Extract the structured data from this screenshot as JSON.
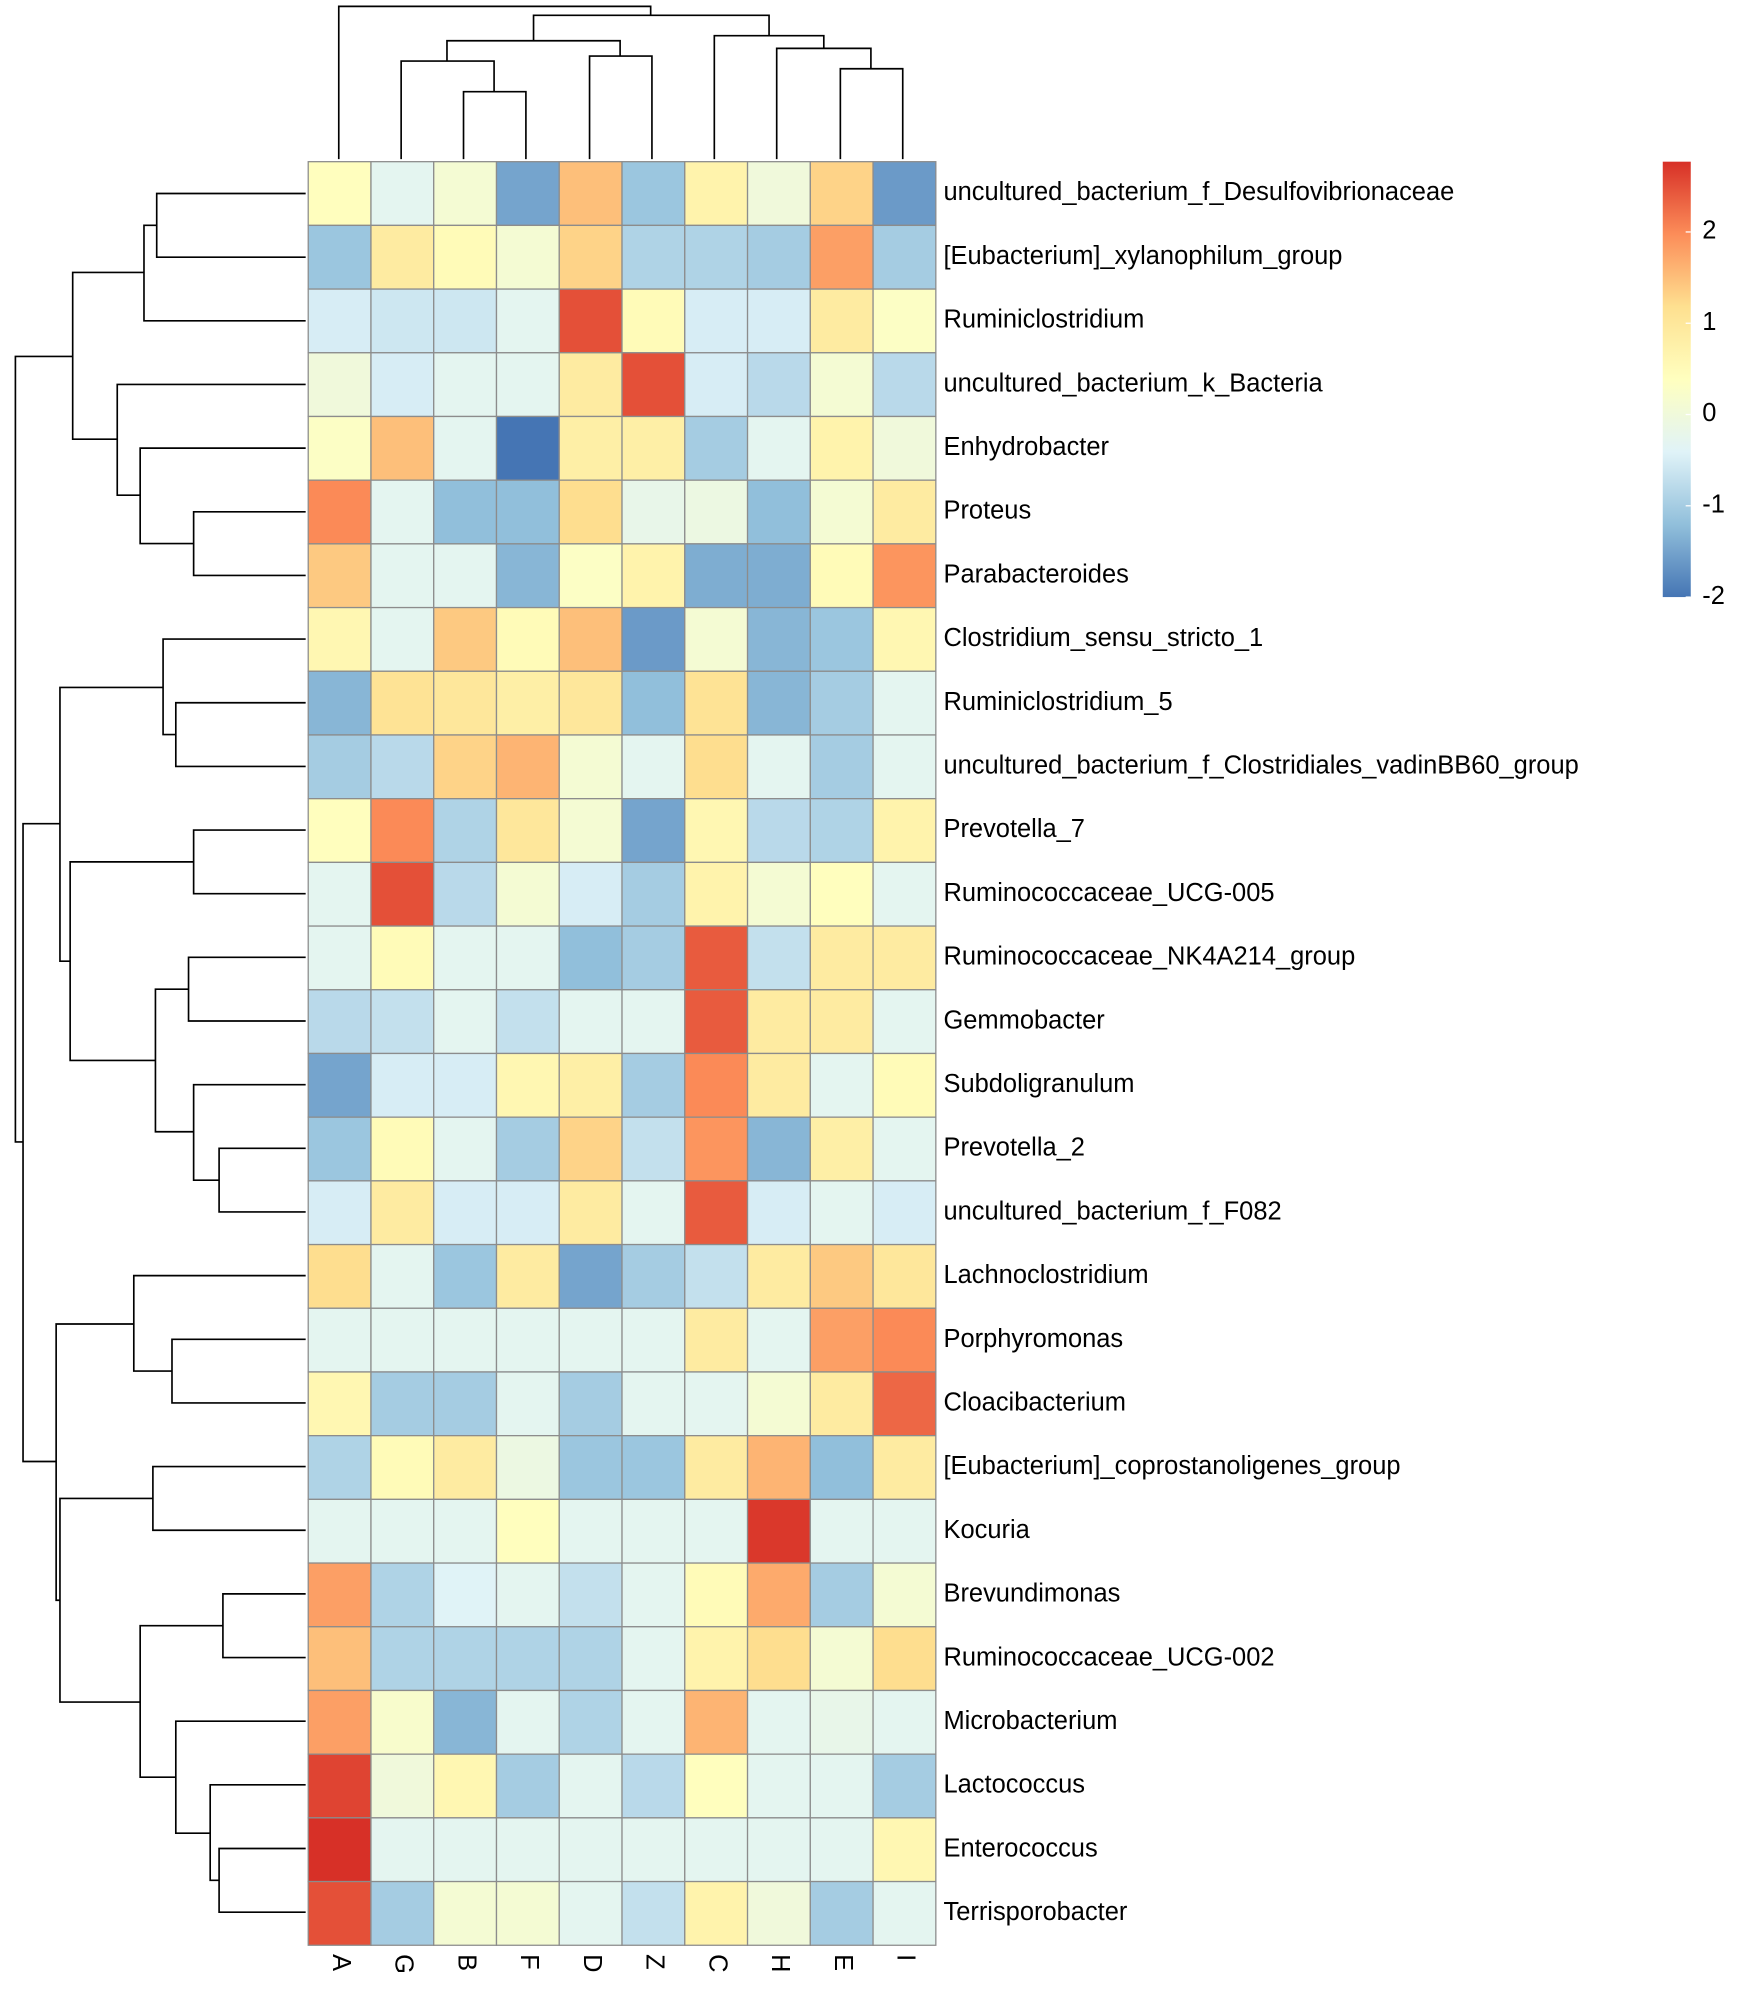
{
  "chart_data": {
    "type": "heatmap",
    "x": [
      "A",
      "G",
      "B",
      "F",
      "D",
      "Z",
      "C",
      "H",
      "E",
      "I"
    ],
    "y": [
      "uncultured_bacterium_f_Desulfovibrionaceae",
      "[Eubacterium]_xylanophilum_group",
      "Ruminiclostridium",
      "uncultured_bacterium_k_Bacteria",
      "Enhydrobacter",
      "Proteus",
      "Parabacteroides",
      "Clostridium_sensu_stricto_1",
      "Ruminiclostridium_5",
      "uncultured_bacterium_f_Clostridiales_vadinBB60_group",
      "Prevotella_7",
      "Ruminococcaceae_UCG-005",
      "Ruminococcaceae_NK4A214_group",
      "Gemmobacter",
      "Subdoligranulum",
      "Prevotella_2",
      "uncultured_bacterium_f_F082",
      "Lachnoclostridium",
      "Porphyromonas",
      "Cloacibacterium",
      "[Eubacterium]_coprostanoligenes_group",
      "Kocuria",
      "Brevundimonas",
      "Ruminococcaceae_UCG-002",
      "Microbacterium",
      "Lactococcus",
      "Enterococcus",
      "Terrisporobacter"
    ],
    "values": [
      [
        0.4,
        -0.3,
        0.1,
        -1.5,
        1.5,
        -1.1,
        0.7,
        0.0,
        1.3,
        -1.6
      ],
      [
        -1.1,
        0.9,
        0.5,
        0.1,
        1.3,
        -0.9,
        -0.9,
        -1.0,
        1.8,
        -1.0
      ],
      [
        -0.5,
        -0.6,
        -0.6,
        -0.3,
        2.5,
        0.5,
        -0.5,
        -0.5,
        0.9,
        0.3
      ],
      [
        0.0,
        -0.5,
        -0.3,
        -0.3,
        0.9,
        2.5,
        -0.5,
        -0.8,
        0.1,
        -0.8
      ],
      [
        0.3,
        1.5,
        -0.3,
        -2.0,
        0.8,
        0.8,
        -1.0,
        -0.3,
        0.7,
        0.0
      ],
      [
        2.0,
        -0.3,
        -1.2,
        -1.2,
        1.2,
        -0.2,
        -0.1,
        -1.2,
        0.1,
        0.9
      ],
      [
        1.4,
        -0.3,
        -0.3,
        -1.3,
        0.3,
        0.7,
        -1.4,
        -1.4,
        0.5,
        1.9
      ],
      [
        0.6,
        -0.3,
        1.4,
        0.5,
        1.5,
        -1.6,
        0.1,
        -1.3,
        -1.1,
        0.6
      ],
      [
        -1.3,
        1.1,
        1.0,
        0.8,
        1.0,
        -1.2,
        1.1,
        -1.3,
        -1.0,
        -0.3
      ],
      [
        -1.0,
        -0.8,
        1.3,
        1.6,
        0.1,
        -0.3,
        1.2,
        -0.3,
        -1.0,
        -0.3
      ],
      [
        0.4,
        2.0,
        -0.9,
        1.0,
        0.1,
        -1.5,
        0.6,
        -0.8,
        -0.9,
        0.7
      ],
      [
        -0.3,
        2.5,
        -0.8,
        0.1,
        -0.5,
        -1.0,
        0.7,
        0.1,
        0.4,
        -0.3
      ],
      [
        -0.3,
        0.5,
        -0.3,
        -0.3,
        -1.2,
        -1.0,
        2.4,
        -0.7,
        0.9,
        0.9
      ],
      [
        -0.8,
        -0.7,
        -0.3,
        -0.7,
        -0.3,
        -0.3,
        2.4,
        0.9,
        0.9,
        -0.3
      ],
      [
        -1.5,
        -0.5,
        -0.5,
        0.6,
        0.8,
        -1.0,
        2.0,
        0.9,
        -0.3,
        0.5
      ],
      [
        -1.1,
        0.5,
        -0.3,
        -1.0,
        1.3,
        -0.7,
        1.9,
        -1.3,
        0.8,
        -0.3
      ],
      [
        -0.5,
        0.9,
        -0.5,
        -0.5,
        0.9,
        -0.3,
        2.4,
        -0.5,
        -0.3,
        -0.5
      ],
      [
        1.2,
        -0.3,
        -1.1,
        0.9,
        -1.5,
        -1.0,
        -0.7,
        0.9,
        1.4,
        1.0
      ],
      [
        -0.3,
        -0.3,
        -0.3,
        -0.3,
        -0.3,
        -0.3,
        0.9,
        -0.3,
        1.8,
        2.0
      ],
      [
        0.6,
        -1.0,
        -1.0,
        -0.3,
        -1.0,
        -0.3,
        -0.3,
        0.1,
        0.9,
        2.3
      ],
      [
        -0.9,
        0.5,
        0.9,
        -0.1,
        -1.1,
        -1.1,
        0.9,
        1.6,
        -1.2,
        0.9
      ],
      [
        -0.3,
        -0.3,
        -0.3,
        0.4,
        -0.3,
        -0.3,
        -0.3,
        2.7,
        -0.3,
        -0.3
      ],
      [
        1.8,
        -0.9,
        -0.4,
        -0.3,
        -0.7,
        -0.3,
        0.5,
        1.7,
        -1.0,
        0.1
      ],
      [
        1.5,
        -0.9,
        -0.9,
        -0.9,
        -0.9,
        -0.3,
        0.7,
        1.2,
        0.1,
        1.2
      ],
      [
        1.8,
        0.2,
        -1.3,
        -0.3,
        -0.9,
        -0.3,
        1.6,
        -0.3,
        -0.2,
        -0.3
      ],
      [
        2.6,
        0.0,
        0.6,
        -1.0,
        -0.3,
        -0.8,
        0.4,
        -0.3,
        -0.3,
        -1.0
      ],
      [
        2.77,
        -0.3,
        -0.3,
        -0.3,
        -0.3,
        -0.3,
        -0.3,
        -0.3,
        -0.3,
        0.6
      ],
      [
        2.5,
        -1.0,
        0.1,
        0.1,
        -0.3,
        -0.7,
        0.7,
        0.0,
        -1.0,
        -0.3
      ]
    ],
    "clim": [
      -2,
      2.77
    ],
    "cticks": [
      -2,
      -1,
      0,
      1,
      2
    ],
    "colors": [
      "#4575B4",
      "#91BFDB",
      "#E0F3F8",
      "#FFFFBF",
      "#FEE090",
      "#FC8D59",
      "#D73027"
    ]
  }
}
